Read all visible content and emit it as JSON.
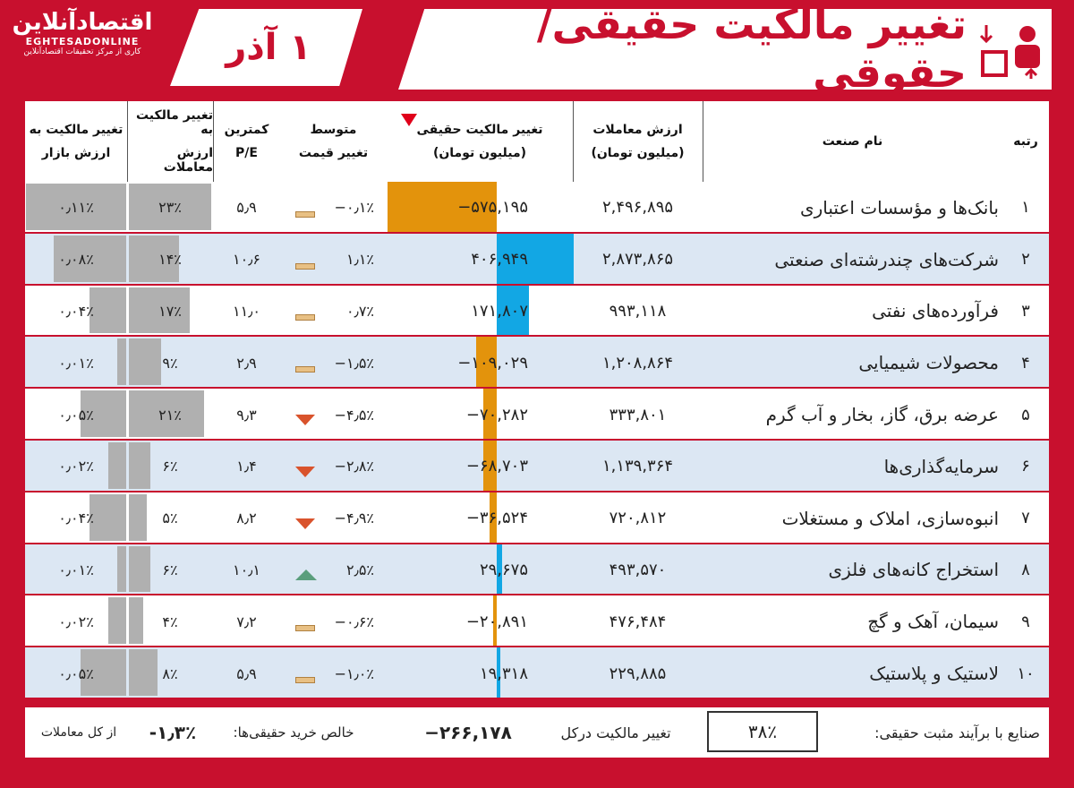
{
  "header": {
    "title": "تغییر مالکیت حقیقی/حقوقی",
    "date": "۱ آذر",
    "logo": "اقتصادآنلاین",
    "logo_latin": "EGHTESADONLINE",
    "logo_sub": "کاری از مرکز تحقیقات اقتصادآنلاین"
  },
  "table": {
    "columns": [
      {
        "title": "رتبه"
      },
      {
        "title": "نام صنعت"
      },
      {
        "title": "ارزش معاملات",
        "unit": "(میلیون تومان)"
      },
      {
        "title": "تغییر مالکیت حقیقی",
        "unit": "(میلیون تومان)"
      },
      {
        "title": "متوسط",
        "unit": "تغییر قیمت"
      },
      {
        "title": "کمترین",
        "unit": "P/E"
      },
      {
        "title": "تغییر مالکیت به",
        "unit": "ارزش معاملات"
      },
      {
        "title": "تغییر مالکیت به",
        "unit": "ارزش بازار"
      }
    ],
    "rows": [
      [
        "۱",
        "بانک‌ها و مؤسسات اعتباری",
        "۲,۴۹۶,۸۹۵",
        "−۵۷۵,۱۹۵",
        "−۰٫۱٪",
        "۵٫۹",
        "۲۳٪",
        "۰٫۱۱٪"
      ],
      [
        "۲",
        "شرکت‌های چندرشته‌ای صنعتی",
        "۲,۸۷۳,۸۶۵",
        "۴۰۶,۹۴۹",
        "۱٫۱٪",
        "۱۰٫۶",
        "۱۴٪",
        "۰٫۰۸٪"
      ],
      [
        "۳",
        "فرآورده‌های نفتی",
        "۹۹۳,۱۱۸",
        "۱۷۱,۸۰۷",
        "۰٫۷٪",
        "۱۱٫۰",
        "۱۷٪",
        "۰٫۰۴٪"
      ],
      [
        "۴",
        "محصولات شیمیایی",
        "۱,۲۰۸,۸۶۴",
        "−۱۰۹,۰۲۹",
        "−۱٫۵٪",
        "۲٫۹",
        "۹٪",
        "۰٫۰۱٪"
      ],
      [
        "۵",
        "عرضه برق، گاز، بخار و آب گرم",
        "۳۳۳,۸۰۱",
        "−۷۰,۲۸۲",
        "−۴٫۵٪",
        "۹٫۳",
        "۲۱٪",
        "۰٫۰۵٪"
      ],
      [
        "۶",
        "سرمایه‌گذاری‌ها",
        "۱,۱۳۹,۳۶۴",
        "−۶۸,۷۰۳",
        "−۲٫۸٪",
        "۱٫۴",
        "۶٪",
        "۰٫۰۲٪"
      ],
      [
        "۷",
        "انبوه‌سازی، املاک و مستغلات",
        "۷۲۰,۸۱۲",
        "−۳۶,۵۲۴",
        "−۴٫۹٪",
        "۸٫۲",
        "۵٪",
        "۰٫۰۴٪"
      ],
      [
        "۸",
        "استخراج کانه‌های فلزی",
        "۴۹۳,۵۷۰",
        "۲۹,۶۷۵",
        "۲٫۵٪",
        "۱۰٫۱",
        "۶٪",
        "۰٫۰۱٪"
      ],
      [
        "۹",
        "سیمان، آهک و گچ",
        "۴۷۶,۴۸۴",
        "−۲۰,۸۹۱",
        "−۰٫۶٪",
        "۷٫۲",
        "۴٪",
        "۰٫۰۲٪"
      ],
      [
        "۱۰",
        "لاستیک و پلاستیک",
        "۲۲۹,۸۸۵",
        "۱۹,۳۱۸",
        "−۱٫۰٪",
        "۵٫۹",
        "۸٪",
        "۰٫۰۵٪"
      ]
    ]
  },
  "footer": {
    "positive_label": "صنایع با برآیند مثبت حقیقی:",
    "positive_value": "۳۸٪",
    "total_label": "تغییر مالکیت درکل",
    "total_value": "−۲۶۶,۱۷۸",
    "net_label": "خالص خرید حقیقی‌ها:",
    "net_value": "-۱٫۳٪",
    "net_suffix": "از کل معاملات"
  }
}
